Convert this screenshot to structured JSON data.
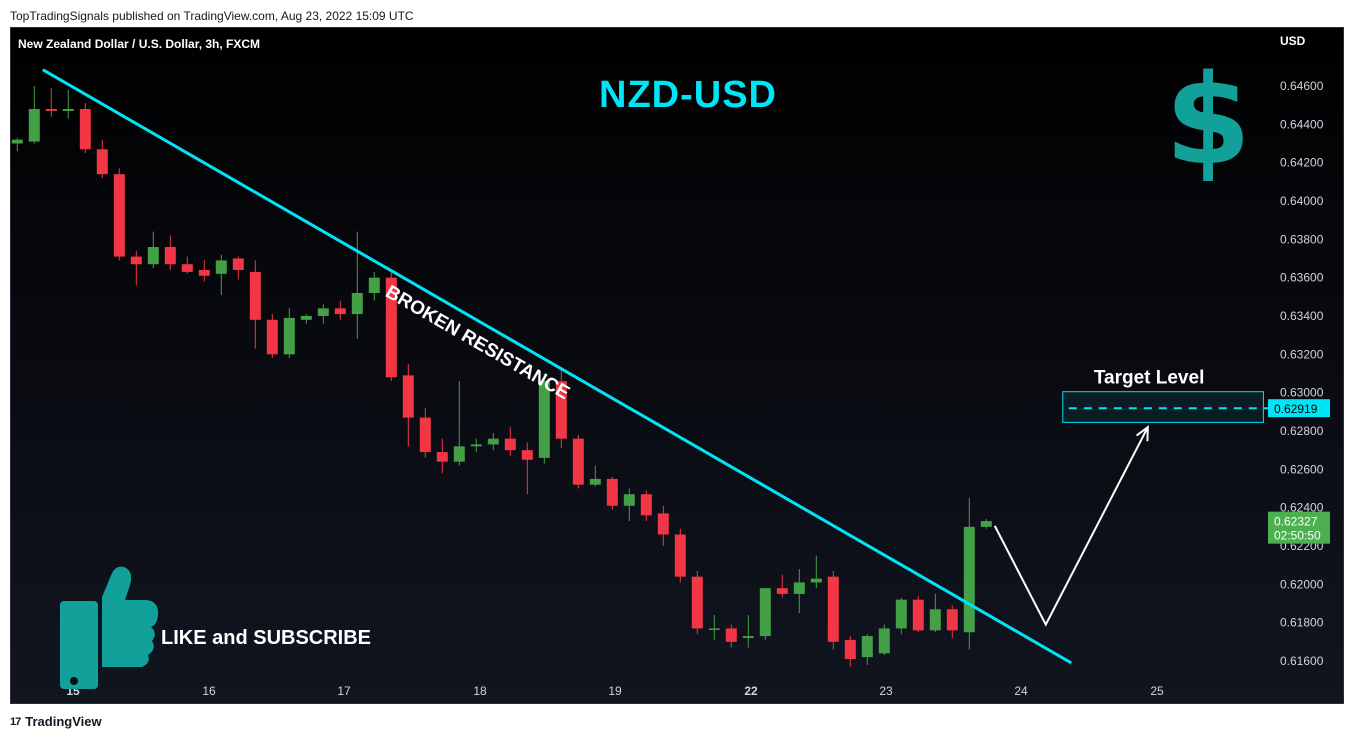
{
  "published_caption": "TopTradingSignals published on TradingView.com, Aug 23, 2022 15:09 UTC",
  "footer_brand": "TradingView",
  "footer_brand_mark": "17",
  "chart_data": {
    "type": "candlestick",
    "symbol_title": "New Zealand Dollar / U.S. Dollar, 3h, FXCM",
    "headline": "NZD-USD",
    "currency": "USD",
    "trendline_label": "BROKEN RESISTANCE",
    "target_label": "Target Level",
    "like_text": "LIKE and SUBSCRIBE",
    "target_price": "0.62919",
    "last_price": "0.62327",
    "countdown": "02:50:50",
    "y_ticks": [
      "0.64600",
      "0.64400",
      "0.64200",
      "0.64000",
      "0.63800",
      "0.63600",
      "0.63400",
      "0.63200",
      "0.63000",
      "0.62800",
      "0.62600",
      "0.62400",
      "0.62200",
      "0.62000",
      "0.61800",
      "0.61600"
    ],
    "x_ticks": [
      {
        "label": "15",
        "bold": true
      },
      {
        "label": "16",
        "bold": false
      },
      {
        "label": "17",
        "bold": false
      },
      {
        "label": "18",
        "bold": false
      },
      {
        "label": "19",
        "bold": false
      },
      {
        "label": "22",
        "bold": true
      },
      {
        "label": "23",
        "bold": false
      },
      {
        "label": "24",
        "bold": false
      },
      {
        "label": "25",
        "bold": false
      }
    ],
    "candles": [
      {
        "o": 0.643,
        "h": 0.6433,
        "l": 0.6426,
        "c": 0.6432
      },
      {
        "o": 0.6431,
        "h": 0.646,
        "l": 0.643,
        "c": 0.6448
      },
      {
        "o": 0.6448,
        "h": 0.6459,
        "l": 0.6444,
        "c": 0.6447
      },
      {
        "o": 0.6447,
        "h": 0.6458,
        "l": 0.6443,
        "c": 0.6448
      },
      {
        "o": 0.6448,
        "h": 0.6451,
        "l": 0.6425,
        "c": 0.6427
      },
      {
        "o": 0.6427,
        "h": 0.6432,
        "l": 0.6412,
        "c": 0.6414
      },
      {
        "o": 0.6414,
        "h": 0.6417,
        "l": 0.6369,
        "c": 0.6371
      },
      {
        "o": 0.6371,
        "h": 0.6374,
        "l": 0.6356,
        "c": 0.6367
      },
      {
        "o": 0.6367,
        "h": 0.6384,
        "l": 0.6365,
        "c": 0.6376
      },
      {
        "o": 0.6376,
        "h": 0.6382,
        "l": 0.6364,
        "c": 0.6367
      },
      {
        "o": 0.6367,
        "h": 0.6371,
        "l": 0.6362,
        "c": 0.6363
      },
      {
        "o": 0.6364,
        "h": 0.6369,
        "l": 0.6358,
        "c": 0.6361
      },
      {
        "o": 0.6362,
        "h": 0.6372,
        "l": 0.6351,
        "c": 0.6369
      },
      {
        "o": 0.637,
        "h": 0.6371,
        "l": 0.6359,
        "c": 0.6364
      },
      {
        "o": 0.6363,
        "h": 0.6369,
        "l": 0.6323,
        "c": 0.6338
      },
      {
        "o": 0.6338,
        "h": 0.6341,
        "l": 0.6318,
        "c": 0.632
      },
      {
        "o": 0.632,
        "h": 0.6344,
        "l": 0.6318,
        "c": 0.6339
      },
      {
        "o": 0.6338,
        "h": 0.6341,
        "l": 0.6336,
        "c": 0.634
      },
      {
        "o": 0.634,
        "h": 0.6346,
        "l": 0.6336,
        "c": 0.6344
      },
      {
        "o": 0.6344,
        "h": 0.6348,
        "l": 0.6338,
        "c": 0.6341
      },
      {
        "o": 0.6341,
        "h": 0.6384,
        "l": 0.6328,
        "c": 0.6352
      },
      {
        "o": 0.6352,
        "h": 0.6363,
        "l": 0.6348,
        "c": 0.636
      },
      {
        "o": 0.636,
        "h": 0.6363,
        "l": 0.6306,
        "c": 0.6308
      },
      {
        "o": 0.6309,
        "h": 0.6315,
        "l": 0.6272,
        "c": 0.6287
      },
      {
        "o": 0.6287,
        "h": 0.6292,
        "l": 0.6266,
        "c": 0.6269
      },
      {
        "o": 0.6269,
        "h": 0.6276,
        "l": 0.6258,
        "c": 0.6264
      },
      {
        "o": 0.6264,
        "h": 0.6306,
        "l": 0.6262,
        "c": 0.6272
      },
      {
        "o": 0.6272,
        "h": 0.6276,
        "l": 0.6269,
        "c": 0.6273
      },
      {
        "o": 0.6273,
        "h": 0.6279,
        "l": 0.627,
        "c": 0.6276
      },
      {
        "o": 0.6276,
        "h": 0.6282,
        "l": 0.6267,
        "c": 0.627
      },
      {
        "o": 0.627,
        "h": 0.6274,
        "l": 0.6247,
        "c": 0.6265
      },
      {
        "o": 0.6266,
        "h": 0.631,
        "l": 0.6263,
        "c": 0.6306
      },
      {
        "o": 0.6306,
        "h": 0.6313,
        "l": 0.6271,
        "c": 0.6276
      },
      {
        "o": 0.6276,
        "h": 0.6278,
        "l": 0.625,
        "c": 0.6252
      },
      {
        "o": 0.6252,
        "h": 0.6262,
        "l": 0.6251,
        "c": 0.6255
      },
      {
        "o": 0.6255,
        "h": 0.6256,
        "l": 0.6239,
        "c": 0.6241
      },
      {
        "o": 0.6241,
        "h": 0.625,
        "l": 0.6233,
        "c": 0.6247
      },
      {
        "o": 0.6247,
        "h": 0.6249,
        "l": 0.6233,
        "c": 0.6236
      },
      {
        "o": 0.6237,
        "h": 0.6241,
        "l": 0.622,
        "c": 0.6226
      },
      {
        "o": 0.6226,
        "h": 0.6229,
        "l": 0.6201,
        "c": 0.6204
      },
      {
        "o": 0.6204,
        "h": 0.6207,
        "l": 0.6174,
        "c": 0.6177
      },
      {
        "o": 0.6177,
        "h": 0.6184,
        "l": 0.6171,
        "c": 0.6177
      },
      {
        "o": 0.6177,
        "h": 0.6179,
        "l": 0.6167,
        "c": 0.617
      },
      {
        "o": 0.6172,
        "h": 0.6184,
        "l": 0.6167,
        "c": 0.6173
      },
      {
        "o": 0.6173,
        "h": 0.6198,
        "l": 0.6171,
        "c": 0.6198
      },
      {
        "o": 0.6198,
        "h": 0.6205,
        "l": 0.6193,
        "c": 0.6195
      },
      {
        "o": 0.6195,
        "h": 0.6208,
        "l": 0.6185,
        "c": 0.6201
      },
      {
        "o": 0.6201,
        "h": 0.6215,
        "l": 0.6198,
        "c": 0.6203
      },
      {
        "o": 0.6204,
        "h": 0.6207,
        "l": 0.6166,
        "c": 0.617
      },
      {
        "o": 0.6171,
        "h": 0.6173,
        "l": 0.6157,
        "c": 0.6161
      },
      {
        "o": 0.6162,
        "h": 0.6174,
        "l": 0.6158,
        "c": 0.6173
      },
      {
        "o": 0.6164,
        "h": 0.6179,
        "l": 0.6163,
        "c": 0.6177
      },
      {
        "o": 0.6177,
        "h": 0.6193,
        "l": 0.6174,
        "c": 0.6192
      },
      {
        "o": 0.6192,
        "h": 0.6194,
        "l": 0.6175,
        "c": 0.6176
      },
      {
        "o": 0.6176,
        "h": 0.6195,
        "l": 0.6175,
        "c": 0.6187
      },
      {
        "o": 0.6187,
        "h": 0.6189,
        "l": 0.6172,
        "c": 0.6176
      },
      {
        "o": 0.6175,
        "h": 0.6245,
        "l": 0.6166,
        "c": 0.623
      },
      {
        "o": 0.623,
        "h": 0.6234,
        "l": 0.6229,
        "c": 0.6233
      }
    ],
    "resistance_line": {
      "p1": {
        "candle": 1.5,
        "price": 0.64685
      },
      "p2": {
        "candle": 62.0,
        "price": 0.6159
      }
    },
    "projection_path": [
      {
        "candle": 57.5,
        "price": 0.62305
      },
      {
        "candle": 60.5,
        "price": 0.6179
      },
      {
        "candle": 66.5,
        "price": 0.6282
      }
    ],
    "target_box": {
      "x_from_candle": 61.5,
      "x_to_candle": 73.3,
      "price_top": 0.63005,
      "price_bottom": 0.62845
    },
    "colors": {
      "up": "#43a047",
      "down": "#f23645",
      "accent": "#00e5f5",
      "teal": "#12a19a",
      "price_label_bg": "#4caf50"
    }
  }
}
